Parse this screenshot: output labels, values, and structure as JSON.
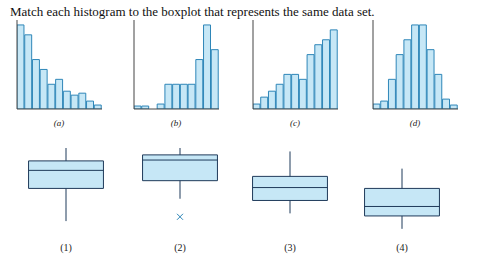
{
  "title": "Match each histogram to the boxplot that represents the same data set.",
  "chart_data": [
    {
      "type": "histogram",
      "title": "(a)",
      "bins": [
        0,
        1,
        2,
        3,
        4,
        5,
        6,
        7,
        8,
        9,
        10,
        11
      ],
      "values": [
        85,
        75,
        50,
        40,
        25,
        30,
        18,
        14,
        16,
        8,
        4
      ],
      "ylim": [
        0,
        90
      ],
      "color": "#c6e7f6",
      "tick_labels": false
    },
    {
      "type": "histogram",
      "title": "(b)",
      "bins": [
        0,
        1,
        2,
        3,
        4,
        5,
        6,
        7,
        8,
        9,
        10,
        11
      ],
      "values": [
        3,
        3,
        0,
        5,
        25,
        25,
        25,
        25,
        50,
        85,
        60
      ],
      "ylim": [
        0,
        90
      ],
      "color": "#c6e7f6",
      "tick_labels": false
    },
    {
      "type": "histogram",
      "title": "(c)",
      "bins": [
        0,
        1,
        2,
        3,
        4,
        5,
        6,
        7,
        8,
        9,
        10,
        11
      ],
      "values": [
        5,
        12,
        18,
        25,
        35,
        35,
        30,
        55,
        65,
        70,
        80
      ],
      "ylim": [
        0,
        90
      ],
      "color": "#c6e7f6",
      "tick_labels": false
    },
    {
      "type": "histogram",
      "title": "(d)",
      "bins": [
        0,
        1,
        2,
        3,
        4,
        5,
        6,
        7,
        8,
        9,
        10,
        11
      ],
      "values": [
        5,
        8,
        30,
        55,
        70,
        85,
        85,
        60,
        35,
        10,
        4
      ],
      "ylim": [
        0,
        90
      ],
      "color": "#c6e7f6",
      "tick_labels": false
    },
    {
      "type": "boxplot",
      "title": "(1)",
      "min": 15,
      "q1": 53,
      "median": 74,
      "q3": 85,
      "max": 100,
      "outliers": [],
      "ylim": [
        0,
        100
      ],
      "color": "#c6e7f6",
      "tick_labels": false
    },
    {
      "type": "boxplot",
      "title": "(2)",
      "min": 41,
      "q1": 62,
      "median": 86,
      "q3": 92,
      "max": 100,
      "outliers": [
        20
      ],
      "ylim": [
        0,
        100
      ],
      "color": "#c6e7f6",
      "marker": "x",
      "tick_labels": false
    },
    {
      "type": "boxplot",
      "title": "(3)",
      "min": 24,
      "q1": 39,
      "median": 54,
      "q3": 67,
      "max": 96,
      "outliers": [],
      "ylim": [
        0,
        100
      ],
      "color": "#c6e7f6",
      "tick_labels": false
    },
    {
      "type": "boxplot",
      "title": "(4)",
      "min": 6,
      "q1": 21,
      "median": 32,
      "q3": 53,
      "max": 76,
      "outliers": [],
      "ylim": [
        0,
        100
      ],
      "color": "#c6e7f6",
      "tick_labels": false
    }
  ]
}
